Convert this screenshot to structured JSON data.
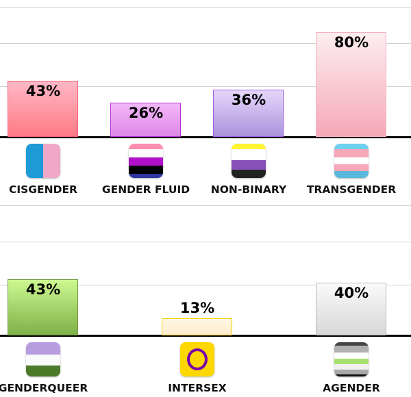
{
  "chart_data": [
    {
      "type": "bar",
      "ylim": [
        0,
        100
      ],
      "grid": true,
      "categories": [
        "CISGENDER",
        "GENDER FLUID",
        "NON-BINARY",
        "TRANSGENDER"
      ],
      "values": [
        43,
        26,
        36,
        80
      ],
      "value_labels": [
        "43%",
        "26%",
        "36%",
        "80%"
      ],
      "icons": [
        "cisgender-flag-icon",
        "genderfluid-flag-icon",
        "nonbinary-flag-icon",
        "transgender-flag-icon"
      ],
      "colors": [
        [
          "#ffb8c6",
          "#ff7a85",
          "#f06078"
        ],
        [
          "#f2b8fa",
          "#dd88e6",
          "#b030d0"
        ],
        [
          "#e6d6fa",
          "#a994dc",
          "#9a60e0"
        ],
        [
          "#fdeef0",
          "#f5a8b8",
          "#f5b0c0"
        ]
      ]
    },
    {
      "type": "bar",
      "ylim": [
        0,
        100
      ],
      "grid": true,
      "categories": [
        "GENDERQUEER",
        "INTERSEX",
        "AGENDER"
      ],
      "values": [
        43,
        13,
        40
      ],
      "value_labels": [
        "43%",
        "13%",
        "40%"
      ],
      "icons": [
        "genderqueer-flag-icon",
        "intersex-flag-icon",
        "agender-flag-icon"
      ],
      "colors": [
        [
          "#ccf890",
          "#80b048",
          "#709a40"
        ],
        [
          "#fff8e4",
          "#fdeccc",
          "#f5d000"
        ],
        [
          "#fafafa",
          "#d8d8d8",
          "#b8b8b8"
        ]
      ]
    }
  ]
}
